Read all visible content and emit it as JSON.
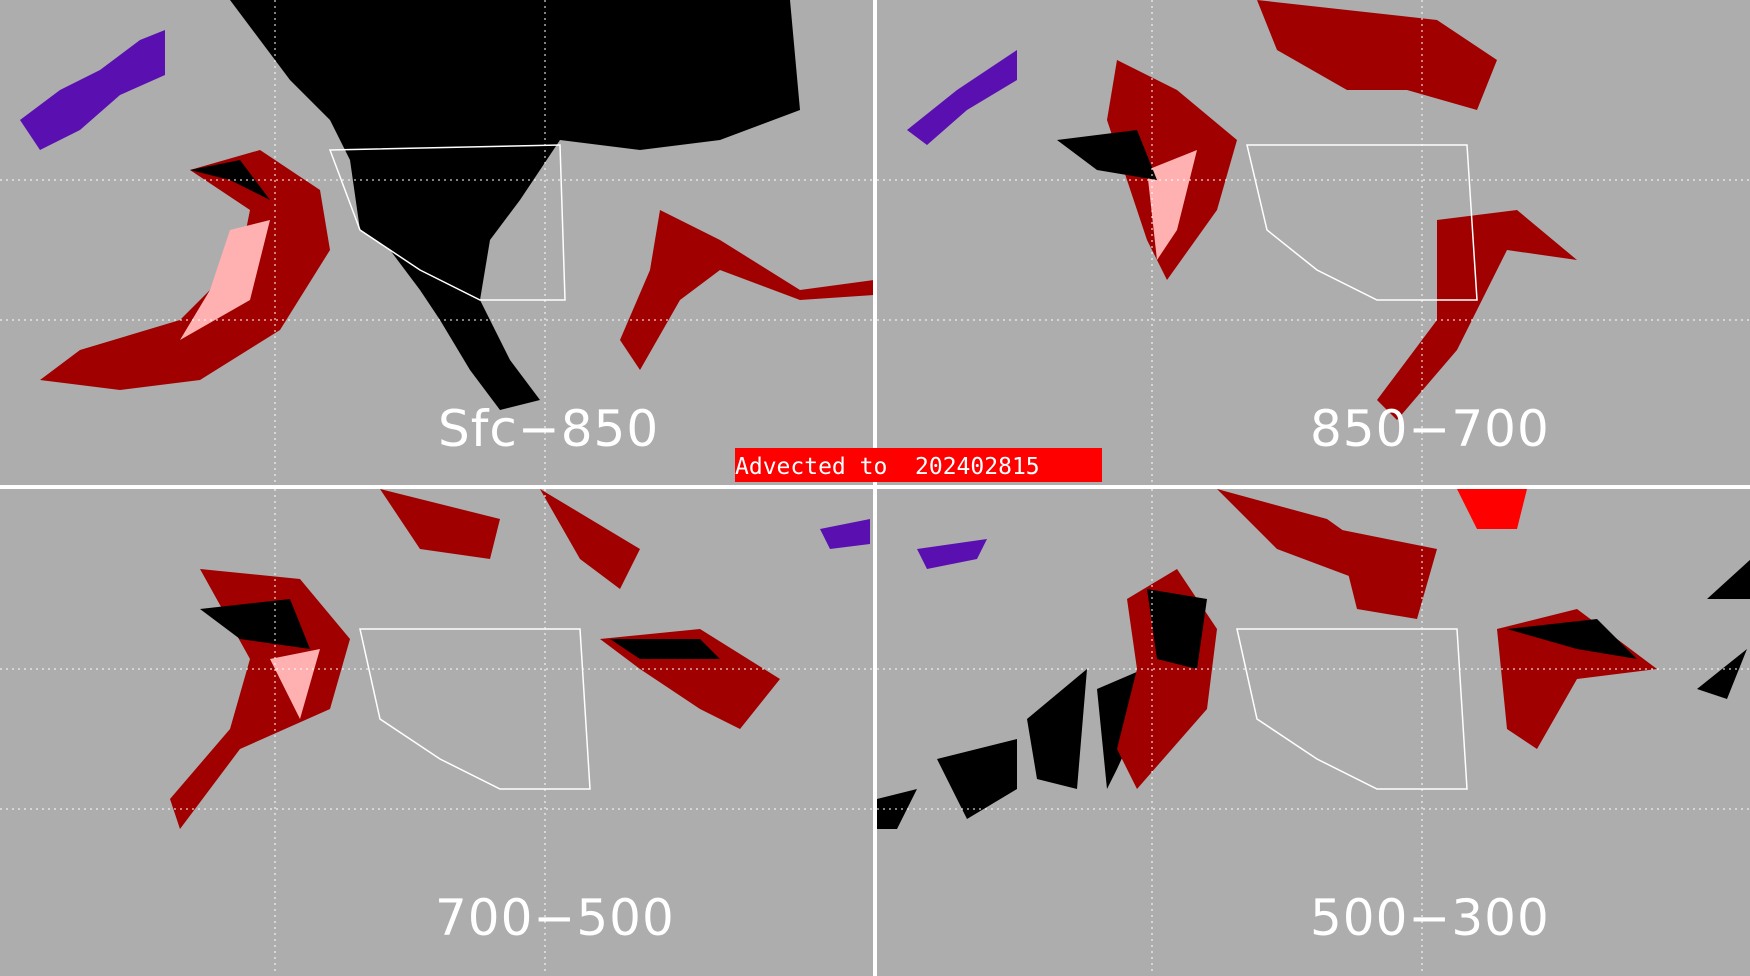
{
  "banner": {
    "text": "Advected to  202402815",
    "color": "#ff0000"
  },
  "panels": [
    {
      "label": "Sfc−850"
    },
    {
      "label": "850−700"
    },
    {
      "label": "700−500"
    },
    {
      "label": "500−300"
    }
  ],
  "colors": {
    "background": "#adadad",
    "dark_red": "#a00000",
    "pink": "#ffb0b0",
    "purple": "#5a10b0",
    "black": "#000000",
    "bright_red": "#ff0000",
    "lines": "#ffffff"
  }
}
